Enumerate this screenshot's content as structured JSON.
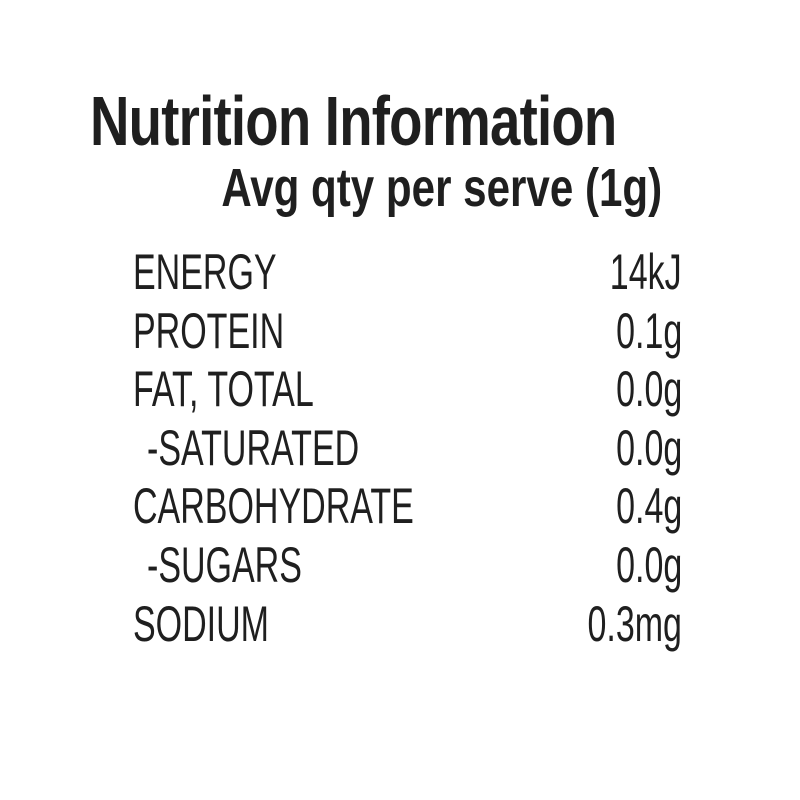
{
  "label": {
    "title": "Nutrition Information",
    "subtitle": "Avg qty per serve (1g)",
    "text_color": "#1f1f1f",
    "background_color": "#ffffff",
    "rows": [
      {
        "name": "ENERGY",
        "value": "14kJ",
        "indent": false
      },
      {
        "name": "PROTEIN",
        "value": "0.1g",
        "indent": false
      },
      {
        "name": "FAT, TOTAL",
        "value": "0.0g",
        "indent": false
      },
      {
        "name": "-SATURATED",
        "value": "0.0g",
        "indent": true
      },
      {
        "name": "CARBOHYDRATE",
        "value": "0.4g",
        "indent": false
      },
      {
        "name": "-SUGARS",
        "value": "0.0g",
        "indent": true
      },
      {
        "name": "SODIUM",
        "value": "0.3mg",
        "indent": false
      }
    ]
  }
}
